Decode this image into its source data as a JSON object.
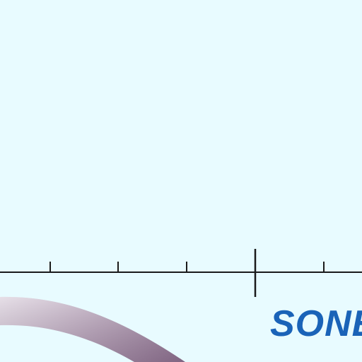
{
  "colors": {
    "background": "#e8fbff",
    "scale_line": "#1a1a1a",
    "brand_text": "#1a63b8",
    "arc_light": "#e2d7e3",
    "arc_dark": "#8c6f8e"
  },
  "brand": {
    "text": "SONE"
  },
  "scale": {
    "ticks": 6,
    "center_marker": true
  },
  "decor": {
    "arc_icon": "curved-band-icon"
  }
}
